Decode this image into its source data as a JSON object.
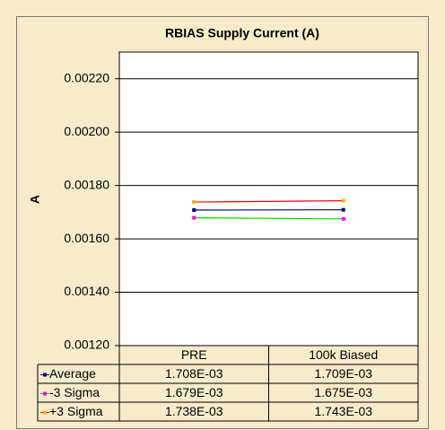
{
  "chart_data": {
    "type": "line",
    "title": "RBIAS Supply Current (A)",
    "y_label": "A",
    "categories": [
      "PRE",
      "100k Biased"
    ],
    "series": [
      {
        "name": "Average",
        "color": "#000080",
        "marker_color": "#000080",
        "values": [
          0.001708,
          0.001709
        ],
        "value_labels": [
          "1.708E-03",
          "1.709E-03"
        ]
      },
      {
        "name": "-3 Sigma",
        "color": "#00dd00",
        "marker_color": "#ff00ff",
        "values": [
          0.001679,
          0.001675
        ],
        "value_labels": [
          "1.679E-03",
          "1.675E-03"
        ]
      },
      {
        "name": "+3 Sigma",
        "color": "#ff0000",
        "marker_color": "#ffb000",
        "values": [
          0.001738,
          0.001743
        ],
        "value_labels": [
          "1.738E-03",
          "1.743E-03"
        ]
      }
    ],
    "ylim": [
      0.0012,
      0.0023
    ],
    "yticks": [
      {
        "value": 0.0012,
        "label": "0.00120"
      },
      {
        "value": 0.0014,
        "label": "0.00140"
      },
      {
        "value": 0.0016,
        "label": "0.00160"
      },
      {
        "value": 0.0018,
        "label": "0.00180"
      },
      {
        "value": 0.002,
        "label": "0.00200"
      },
      {
        "value": 0.0022,
        "label": "0.00220"
      }
    ],
    "grid": true,
    "data_table": true
  }
}
